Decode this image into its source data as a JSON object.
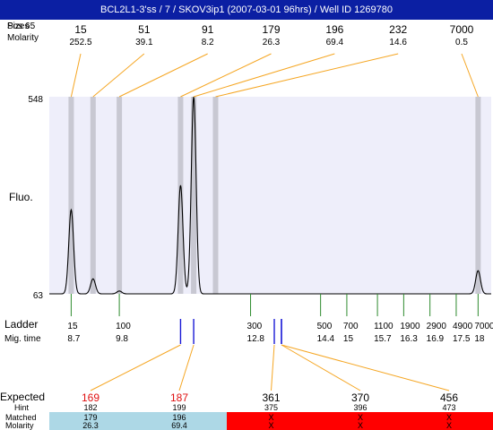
{
  "title": "BCL2L1-3'ss / 7 / SKOV3ip1 (2007-03-01 96hrs) / Well ID 1269780",
  "header_labels": {
    "sizes": "Sizes",
    "size_overlay": "Pos 65",
    "molarity": "Molarity"
  },
  "ylabel": "Fluo.",
  "ladder_labels": {
    "ladder": "Ladder",
    "mig_time": "Mig. time"
  },
  "table_labels": {
    "expected": "Expected",
    "hint": "Hint",
    "matched": "Matched",
    "molarity": "Molarity"
  },
  "colors": {
    "title_bg": "#0b1fa3",
    "plot_bg": "#eeeefa",
    "peak_band": "#c8c8d2",
    "connector": "#f5a623",
    "ladder_tick": "#2e8b2e",
    "expected_red": "#e01010",
    "matched_bg": "#add8e6",
    "unmatched_bg": "#ff0000",
    "marker_blue": "#1a1ad6"
  },
  "chart_data": {
    "type": "line",
    "title": "BCL2L1-3'ss / 7 / SKOV3ip1 (2007-03-01 96hrs) / Well ID 1269780",
    "ylabel": "Fluo.",
    "y_ticks": [
      "548",
      "63"
    ],
    "ylim": [
      63,
      548
    ],
    "xlim": [
      8.2,
      18.3
    ],
    "top_peaks": [
      {
        "size": "15",
        "molarity": "252.5",
        "time": 8.7
      },
      {
        "size": "51",
        "molarity": "39.1",
        "time": 9.2
      },
      {
        "size": "91",
        "molarity": "8.2",
        "time": 9.8
      },
      {
        "size": "179",
        "molarity": "26.3",
        "time": 11.2
      },
      {
        "size": "196",
        "molarity": "69.4",
        "time": 11.5
      },
      {
        "size": "232",
        "molarity": "14.6",
        "time": 12.0
      },
      {
        "size": "7000",
        "molarity": "0.5",
        "time": 18.0
      }
    ],
    "trace_peaks": [
      {
        "time": 8.7,
        "height": 270
      },
      {
        "time": 9.2,
        "height": 100
      },
      {
        "time": 9.8,
        "height": 70
      },
      {
        "time": 11.2,
        "height": 330
      },
      {
        "time": 11.5,
        "height": 548
      },
      {
        "time": 18.0,
        "height": 120
      }
    ],
    "ladder": [
      {
        "size": "15",
        "time": "8.7"
      },
      {
        "size": "100",
        "time": "9.8"
      },
      {
        "size": "300",
        "time": "12.8"
      },
      {
        "size": "500",
        "time": "14.4"
      },
      {
        "size": "700",
        "time": "15"
      },
      {
        "size": "1100",
        "time": "15.7"
      },
      {
        "size": "1900",
        "time": "16.3"
      },
      {
        "size": "2900",
        "time": "16.9"
      },
      {
        "size": "4900",
        "time": "17.5"
      },
      {
        "size": "7000",
        "time": "18"
      }
    ],
    "expected": [
      {
        "expected": "169",
        "hint": "182",
        "matched": "179",
        "molarity": "26.3",
        "is_matched": true,
        "marker_time": 11.2
      },
      {
        "expected": "187",
        "hint": "199",
        "matched": "196",
        "molarity": "69.4",
        "is_matched": true,
        "marker_time": 11.5
      },
      {
        "expected": "361",
        "hint": "375",
        "matched": "X",
        "molarity": "X",
        "is_matched": false,
        "marker_time": 13.45
      },
      {
        "expected": "370",
        "hint": "396",
        "matched": "X",
        "molarity": "X",
        "is_matched": false,
        "marker_time": 13.6
      },
      {
        "expected": "456",
        "hint": "473",
        "matched": "X",
        "molarity": "X",
        "is_matched": false,
        "marker_time": 13.6
      }
    ]
  }
}
